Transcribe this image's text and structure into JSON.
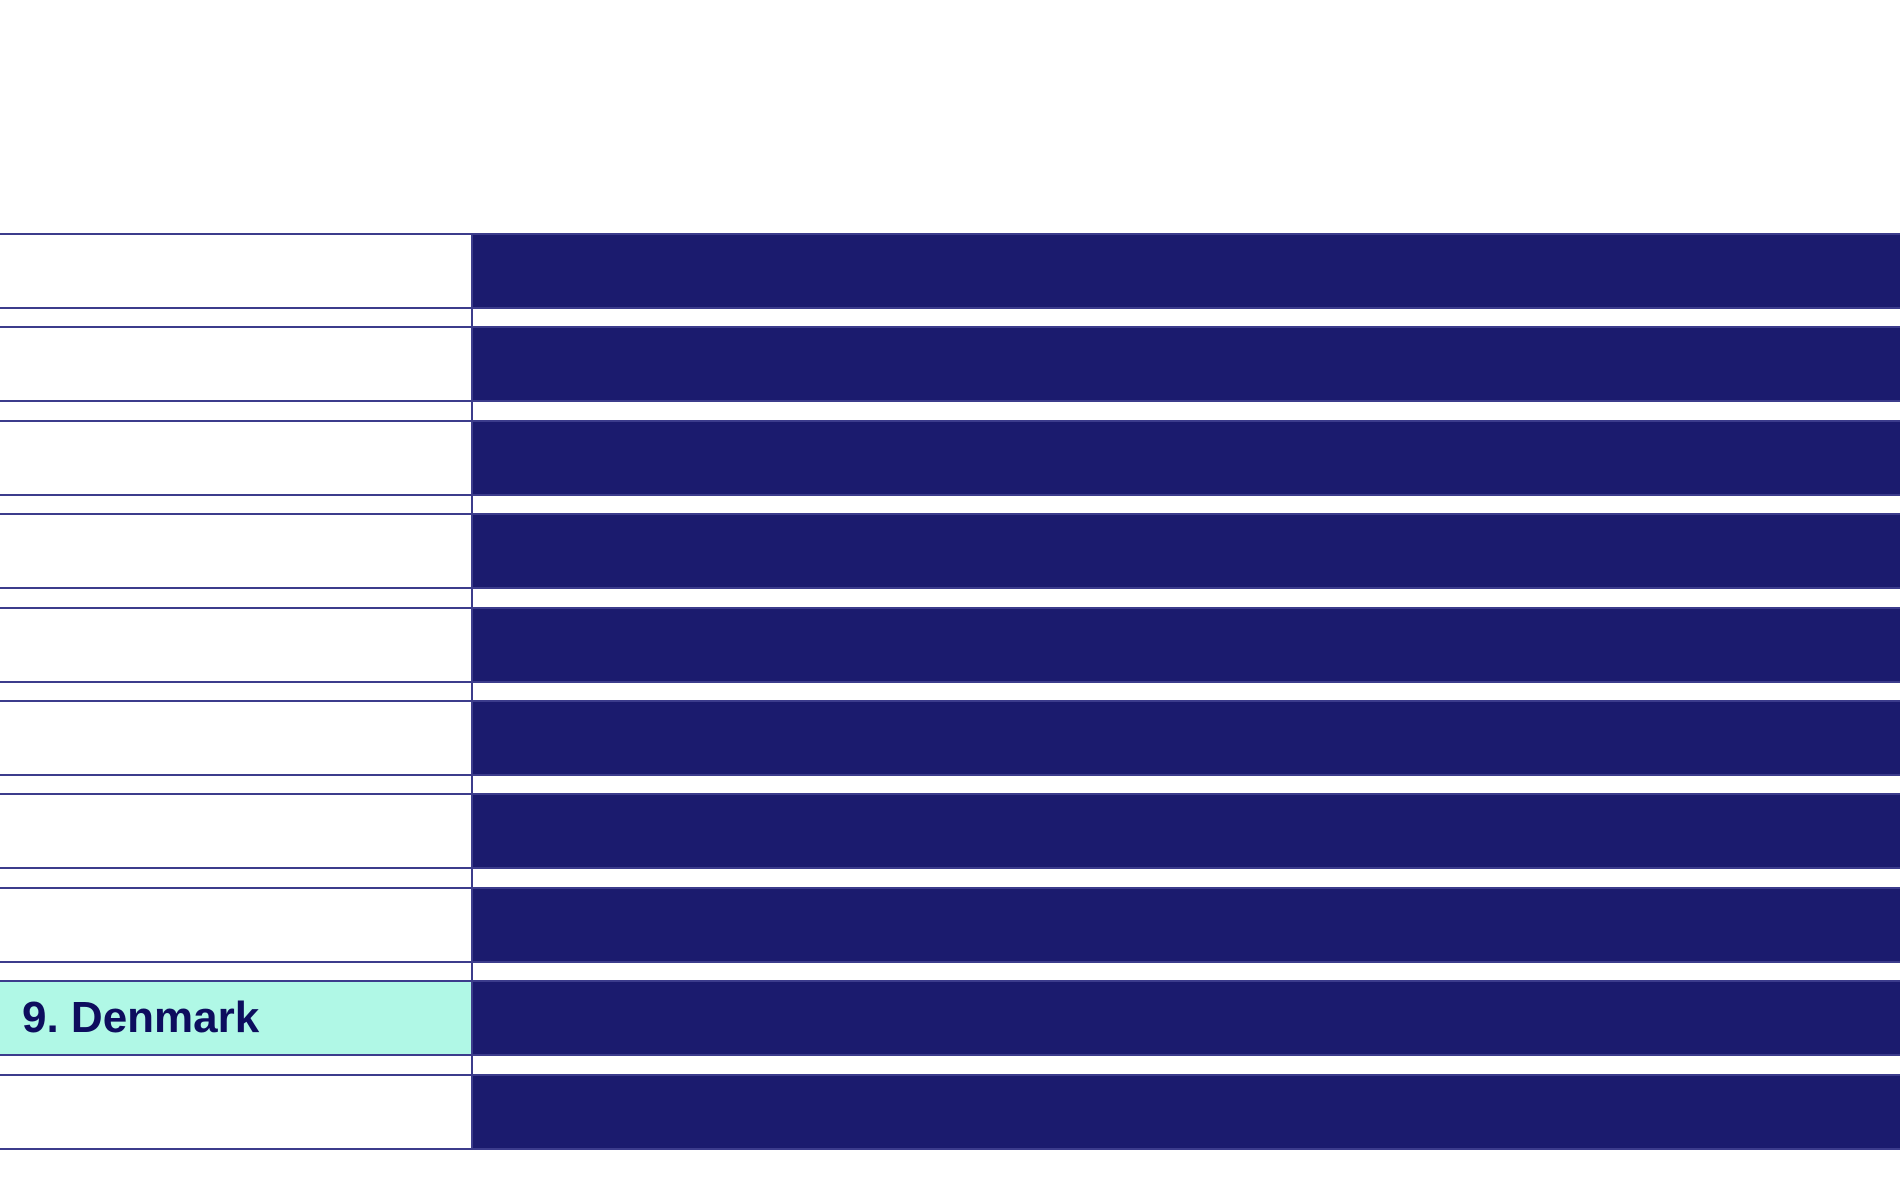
{
  "rows": [
    {
      "label": "",
      "highlighted": false
    },
    {
      "label": "",
      "highlighted": false
    },
    {
      "label": "",
      "highlighted": false
    },
    {
      "label": "",
      "highlighted": false
    },
    {
      "label": "",
      "highlighted": false
    },
    {
      "label": "",
      "highlighted": false
    },
    {
      "label": "",
      "highlighted": false
    },
    {
      "label": "",
      "highlighted": false
    },
    {
      "label": "9. Denmark",
      "highlighted": true
    },
    {
      "label": "",
      "highlighted": false
    }
  ],
  "colors": {
    "bar": "#1b1b6e",
    "highlight": "#b0f8e6",
    "text": "#0d0d5e",
    "line": "#3c3c8c"
  }
}
